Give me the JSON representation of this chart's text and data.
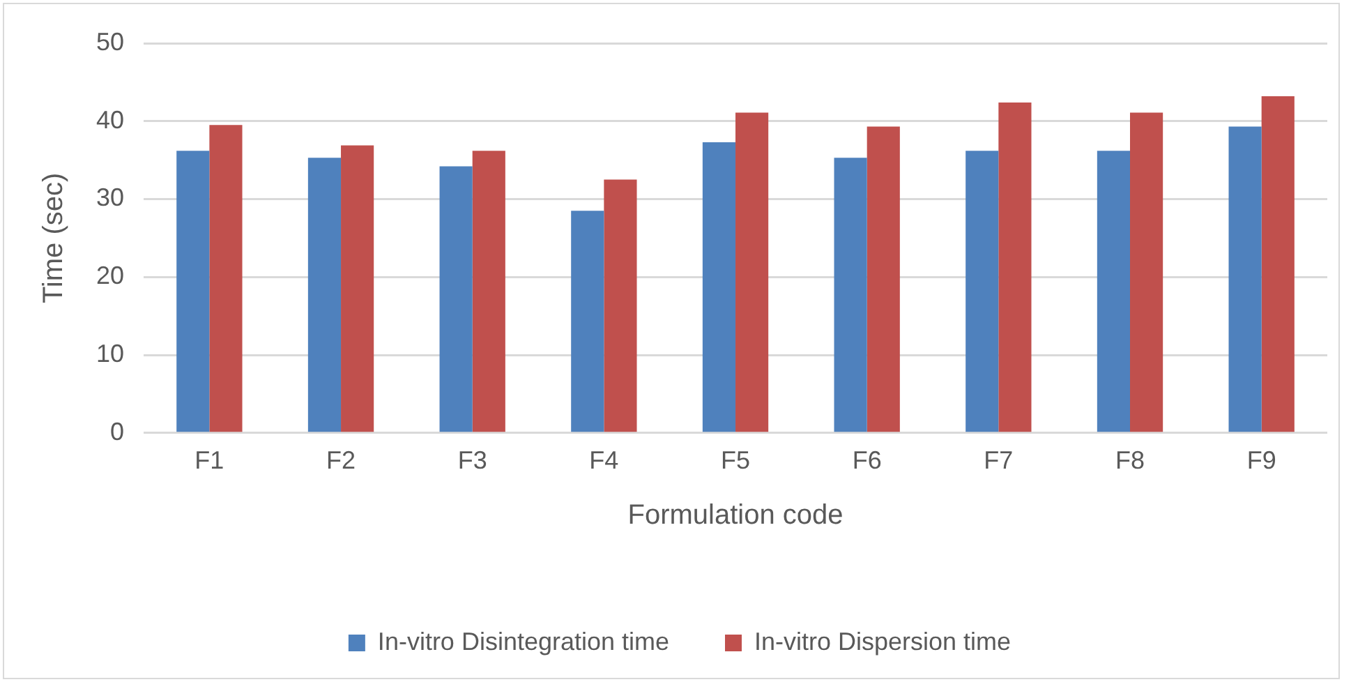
{
  "chart_data": {
    "type": "bar",
    "xlabel": "Formulation code",
    "ylabel": "Time (sec)",
    "categories": [
      "F1",
      "F2",
      "F3",
      "F4",
      "F5",
      "F6",
      "F7",
      "F8",
      "F9"
    ],
    "series": [
      {
        "name": "In-vitro Disintegration time",
        "color": "#4f81bd",
        "values": [
          36.2,
          35.3,
          34.2,
          28.5,
          37.3,
          35.3,
          36.2,
          36.2,
          39.3
        ]
      },
      {
        "name": "In-vitro Dispersion time",
        "color": "#c0504d",
        "values": [
          39.5,
          36.9,
          36.2,
          32.5,
          41.1,
          39.3,
          42.4,
          41.1,
          43.2
        ]
      }
    ],
    "ylim": [
      0,
      50
    ],
    "yticks": [
      0,
      10,
      20,
      30,
      40,
      50
    ],
    "grid": "y",
    "legend": "bottom"
  }
}
